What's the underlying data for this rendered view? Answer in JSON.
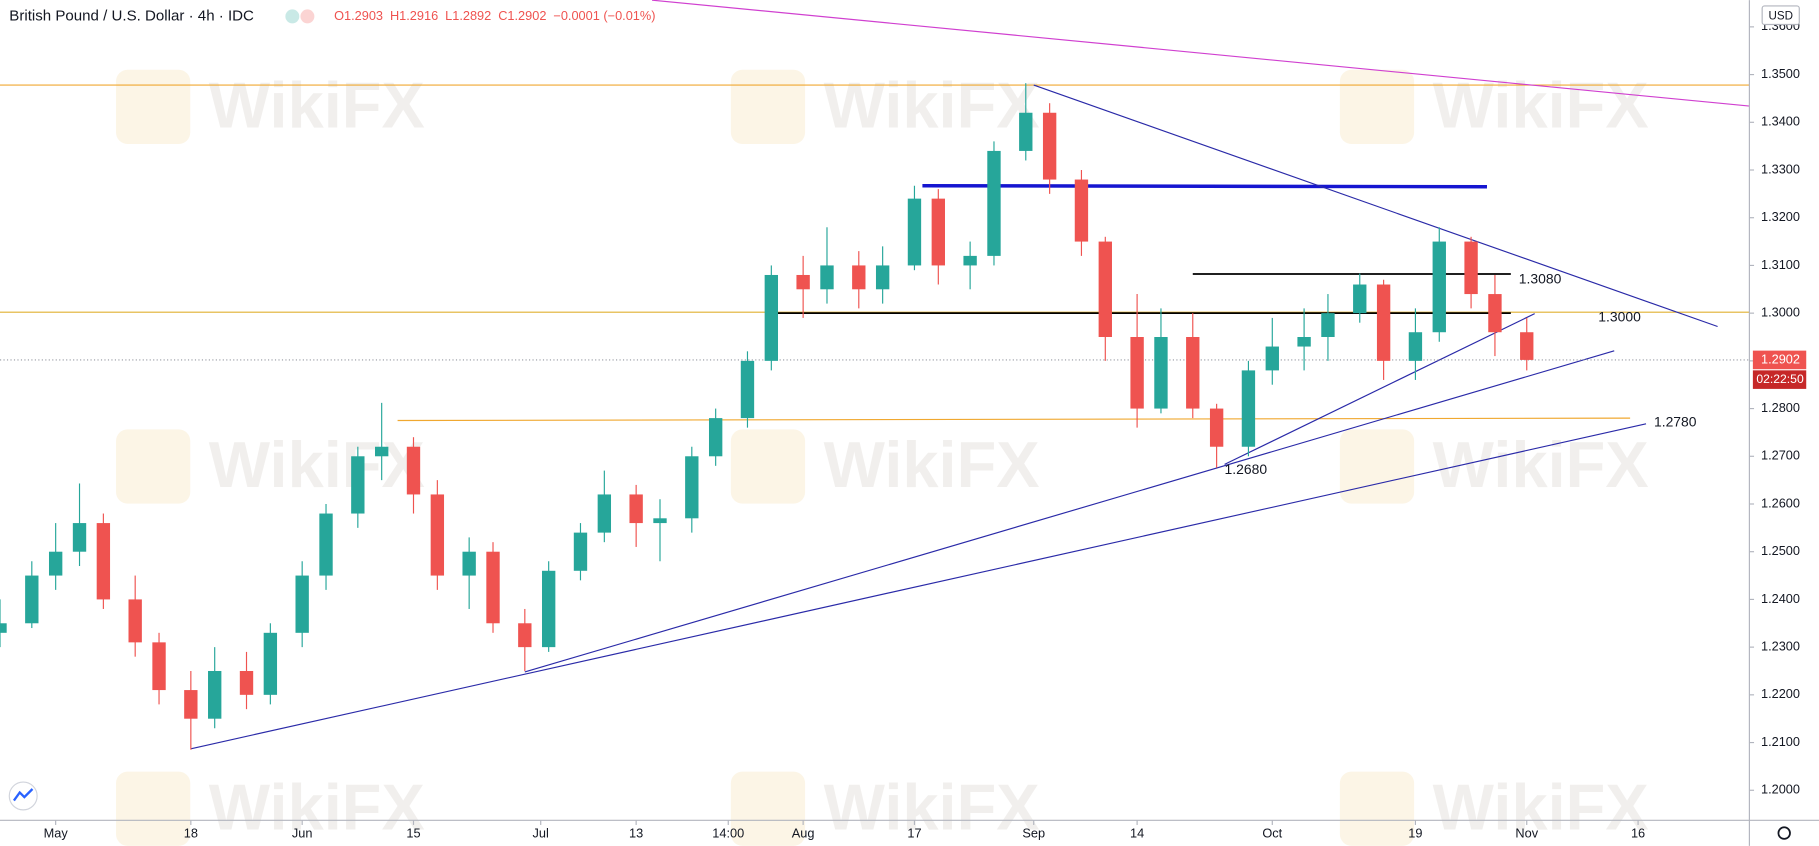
{
  "chart_data": {
    "type": "candlestick",
    "title": "British Pound / U.S. Dollar · 4h · IDC",
    "header_values": [
      "O1.2903",
      "H1.2916",
      "L1.2892",
      "C1.2902",
      "−0.0001 (−0.01%)"
    ],
    "currency": "USD",
    "watermark": "WikiFX",
    "up_color": "#26a69a",
    "down_color": "#ef5350",
    "x": [
      "Apr 24",
      "Apr 28",
      "May 1",
      "May 4",
      "May 7",
      "May 11",
      "May 14",
      "May 18",
      "May 21",
      "May 25",
      "May 28",
      "Jun 1",
      "Jun 4",
      "Jun 8",
      "Jun 11",
      "Jun 15",
      "Jun 18",
      "Jun 22",
      "Jun 25",
      "Jun 29",
      "Jul 2",
      "Jul 6",
      "Jul 9",
      "Jul 13",
      "Jul 16",
      "Jul 20",
      "Jul 23",
      "Jul 27",
      "Jul 30",
      "Aug 3",
      "Aug 6",
      "Aug 10",
      "Aug 13",
      "Aug 17",
      "Aug 20",
      "Aug 24",
      "Aug 27",
      "Aug 31",
      "Sep 3",
      "Sep 7",
      "Sep 10",
      "Sep 14",
      "Sep 17",
      "Sep 21",
      "Sep 24",
      "Sep 28",
      "Oct 1",
      "Oct 5",
      "Oct 8",
      "Oct 12",
      "Oct 15",
      "Oct 19",
      "Oct 22",
      "Oct 26",
      "Oct 29",
      "Nov 2"
    ],
    "open": [
      1.233,
      1.235,
      1.245,
      1.25,
      1.256,
      1.24,
      1.231,
      1.221,
      1.215,
      1.225,
      1.22,
      1.233,
      1.245,
      1.258,
      1.27,
      1.272,
      1.262,
      1.245,
      1.25,
      1.235,
      1.23,
      1.246,
      1.254,
      1.262,
      1.256,
      1.257,
      1.27,
      1.278,
      1.29,
      1.308,
      1.305,
      1.31,
      1.305,
      1.31,
      1.324,
      1.31,
      1.312,
      1.334,
      1.342,
      1.328,
      1.315,
      1.295,
      1.28,
      1.295,
      1.28,
      1.272,
      1.288,
      1.293,
      1.295,
      1.3,
      1.306,
      1.29,
      1.296,
      1.315,
      1.304,
      1.296
    ],
    "high": [
      1.24,
      1.248,
      1.256,
      1.2643,
      1.258,
      1.245,
      1.233,
      1.225,
      1.23,
      1.229,
      1.235,
      1.248,
      1.26,
      1.272,
      1.2812,
      1.274,
      1.265,
      1.253,
      1.252,
      1.238,
      1.248,
      1.256,
      1.267,
      1.264,
      1.261,
      1.272,
      1.28,
      1.292,
      1.31,
      1.312,
      1.318,
      1.313,
      1.314,
      1.3267,
      1.326,
      1.315,
      1.336,
      1.3482,
      1.344,
      1.33,
      1.316,
      1.304,
      1.301,
      1.3,
      1.281,
      1.29,
      1.299,
      1.301,
      1.304,
      1.3083,
      1.307,
      1.301,
      1.318,
      1.316,
      1.308,
      1.299
    ],
    "low": [
      1.23,
      1.234,
      1.242,
      1.247,
      1.238,
      1.228,
      1.218,
      1.2085,
      1.213,
      1.217,
      1.218,
      1.23,
      1.242,
      1.255,
      1.265,
      1.258,
      1.242,
      1.238,
      1.233,
      1.225,
      1.229,
      1.244,
      1.252,
      1.251,
      1.248,
      1.254,
      1.268,
      1.276,
      1.288,
      1.299,
      1.302,
      1.301,
      1.302,
      1.309,
      1.306,
      1.305,
      1.31,
      1.332,
      1.325,
      1.312,
      1.29,
      1.276,
      1.279,
      1.278,
      1.2676,
      1.27,
      1.285,
      1.288,
      1.29,
      1.298,
      1.286,
      1.286,
      1.294,
      1.301,
      1.291,
      1.288
    ],
    "close": [
      1.235,
      1.245,
      1.25,
      1.256,
      1.24,
      1.231,
      1.221,
      1.215,
      1.225,
      1.22,
      1.233,
      1.245,
      1.258,
      1.27,
      1.272,
      1.262,
      1.245,
      1.25,
      1.235,
      1.23,
      1.246,
      1.254,
      1.262,
      1.256,
      1.257,
      1.27,
      1.278,
      1.29,
      1.308,
      1.305,
      1.31,
      1.305,
      1.31,
      1.324,
      1.31,
      1.312,
      1.334,
      1.342,
      1.328,
      1.315,
      1.295,
      1.28,
      1.295,
      1.28,
      1.272,
      1.288,
      1.293,
      1.295,
      1.3,
      1.306,
      1.29,
      1.296,
      1.315,
      1.304,
      1.296,
      1.2902
    ],
    "xlim": [
      "Apr 24",
      "Nov 30"
    ],
    "xticks": [
      {
        "value": "May 1",
        "label": "May"
      },
      {
        "value": "May 18",
        "label": "18"
      },
      {
        "value": "Jun 1",
        "label": "Jun"
      },
      {
        "value": "Jun 15",
        "label": "15"
      },
      {
        "value": "Jul 1",
        "label": "Jul"
      },
      {
        "value": "Jul 13",
        "label": "13"
      },
      {
        "value": "Jul 24 14:00",
        "label": "14:00"
      },
      {
        "value": "Aug 3",
        "label": "Aug"
      },
      {
        "value": "Aug 17",
        "label": "17"
      },
      {
        "value": "Sep 1",
        "label": "Sep"
      },
      {
        "value": "Sep 14",
        "label": "14"
      },
      {
        "value": "Oct 1",
        "label": "Oct"
      },
      {
        "value": "Oct 19",
        "label": "19"
      },
      {
        "value": "Nov 2",
        "label": "Nov"
      },
      {
        "value": "Nov 16",
        "label": "16"
      }
    ],
    "ylim": [
      1.1937,
      1.3656
    ],
    "yticks": [
      {
        "value": 1.2,
        "label": "1.2000"
      },
      {
        "value": 1.21,
        "label": "1.2100"
      },
      {
        "value": 1.22,
        "label": "1.2200"
      },
      {
        "value": 1.23,
        "label": "1.2300"
      },
      {
        "value": 1.24,
        "label": "1.2400"
      },
      {
        "value": 1.25,
        "label": "1.2500"
      },
      {
        "value": 1.26,
        "label": "1.2600"
      },
      {
        "value": 1.27,
        "label": "1.2700"
      },
      {
        "value": 1.28,
        "label": "1.2800"
      },
      {
        "value": 1.29,
        "label": "1.2900"
      },
      {
        "value": 1.3,
        "label": "1.3000"
      },
      {
        "value": 1.31,
        "label": "1.3100"
      },
      {
        "value": 1.32,
        "label": "1.3200"
      },
      {
        "value": 1.33,
        "label": "1.3300"
      },
      {
        "value": 1.34,
        "label": "1.3400"
      },
      {
        "value": 1.35,
        "label": "1.3500"
      },
      {
        "value": 1.36,
        "label": "1.3600"
      }
    ],
    "last_price": {
      "value": 1.2902,
      "label": "1.2902"
    },
    "countdown": "02:22:50",
    "lines": [
      {
        "x1": "Apr 24",
        "y1": 1.3478,
        "x2": "Nov 30",
        "y2": 1.3478,
        "color": "#f0a830",
        "width": 1
      },
      {
        "x1": "Apr 24",
        "y1": 1.3002,
        "x2": "Nov 30",
        "y2": 1.3002,
        "color": "#e0b030",
        "width": 1
      },
      {
        "x1": "Jun 13",
        "y1": 1.2775,
        "x2": "Nov 15",
        "y2": 1.278,
        "color": "#f0a830",
        "width": 1
      },
      {
        "x1": "Sep 21",
        "y1": 1.3082,
        "x2": "Oct 31",
        "y2": 1.3082,
        "color": "#000000",
        "width": 1.5
      },
      {
        "x1": "Jul 30",
        "y1": 1.3,
        "x2": "Oct 31",
        "y2": 1.3,
        "color": "#000000",
        "width": 1.5
      },
      {
        "x1": "Aug 18",
        "y1": 1.3267,
        "x2": "Oct 28",
        "y2": 1.3265,
        "color": "#1515d0",
        "width": 3
      },
      {
        "x1": "Sep 1",
        "y1": 1.3478,
        "x2": "Nov 26",
        "y2": 1.2972,
        "color": "#2a2aa8",
        "width": 1
      },
      {
        "x1": "May 18",
        "y1": 1.2087,
        "x2": "Nov 17",
        "y2": 1.2768,
        "color": "#2a2aa8",
        "width": 1
      },
      {
        "x1": "Jun 29",
        "y1": 1.2248,
        "x2": "Nov 13",
        "y2": 1.2921,
        "color": "#2a2aa8",
        "width": 1
      },
      {
        "x1": "Sep 25",
        "y1": 1.2683,
        "x2": "Nov 3",
        "y2": 1.2999,
        "color": "#2a2aa8",
        "width": 1
      },
      {
        "x1": "Jul 15",
        "y1": 1.3656,
        "x2": "Nov 30",
        "y2": 1.3434,
        "color": "#d040d0",
        "width": 1
      }
    ],
    "annotations": [
      {
        "x": "Nov 1",
        "value": 1.308,
        "label": "1.3080"
      },
      {
        "x": "Nov 11",
        "value": 1.3,
        "label": "1.3000"
      },
      {
        "x": "Nov 18",
        "value": 1.278,
        "label": "1.2780"
      },
      {
        "x": "Sep 25",
        "value": 1.268,
        "label": "1.2680"
      }
    ]
  }
}
